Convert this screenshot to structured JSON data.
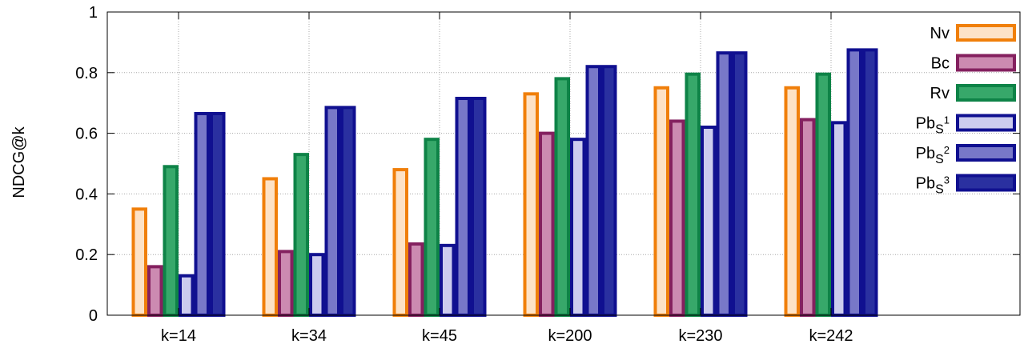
{
  "chart_data": {
    "type": "bar",
    "title": "",
    "xlabel": "",
    "ylabel": "NDCG@k",
    "categories": [
      "k=14",
      "k=34",
      "k=45",
      "k=200",
      "k=230",
      "k=242"
    ],
    "ylim": [
      0,
      1
    ],
    "yticks": [
      "0",
      "0.2",
      "0.4",
      "0.6",
      "0.8",
      "1"
    ],
    "grid": true,
    "legend_position": "top-right",
    "series": [
      {
        "name": "Nv",
        "values": [
          0.35,
          0.45,
          0.48,
          0.73,
          0.75,
          0.75
        ],
        "stroke": "#f07f0a",
        "fill": "#fde2c6"
      },
      {
        "name": "Bc",
        "values": [
          0.16,
          0.21,
          0.235,
          0.6,
          0.64,
          0.645
        ],
        "stroke": "#84205f",
        "fill": "#cc8ab1"
      },
      {
        "name": "Rv",
        "values": [
          0.49,
          0.53,
          0.58,
          0.78,
          0.795,
          0.795
        ],
        "stroke": "#0e8347",
        "fill": "#37a86a"
      },
      {
        "name": "Pb",
        "sub": "S",
        "sup": "1",
        "values": [
          0.13,
          0.2,
          0.23,
          0.58,
          0.62,
          0.635
        ],
        "stroke": "#101090",
        "fill": "#ccccee"
      },
      {
        "name": "Pb",
        "sub": "S",
        "sup": "2",
        "values": [
          0.665,
          0.685,
          0.715,
          0.82,
          0.865,
          0.875
        ],
        "stroke": "#101090",
        "fill": "#7878c8"
      },
      {
        "name": "Pb",
        "sub": "S",
        "sup": "3",
        "values": [
          0.665,
          0.685,
          0.715,
          0.82,
          0.865,
          0.875
        ],
        "stroke": "#101090",
        "fill": "#2a30a0"
      }
    ]
  }
}
